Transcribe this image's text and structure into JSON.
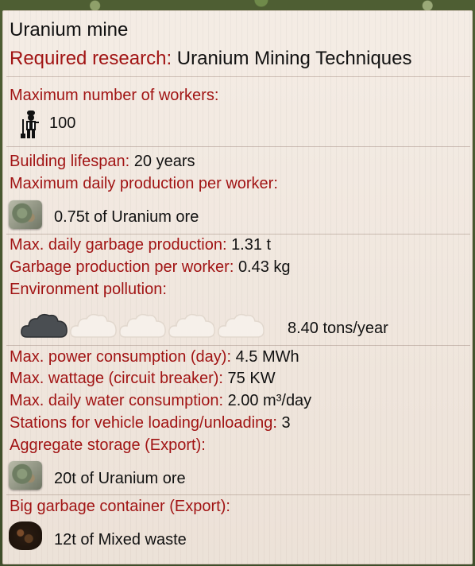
{
  "building": {
    "name": "Uranium mine",
    "required_research_label": "Required research:",
    "required_research_value": "Uranium Mining Techniques"
  },
  "workers": {
    "label": "Maximum number of workers:",
    "icon": "worker-icon",
    "value": "100"
  },
  "lifespan": {
    "label": "Building lifespan:",
    "value": "20 years"
  },
  "production": {
    "label": "Maximum daily production per worker:",
    "icon": "uranium-ore-icon",
    "value": "0.75t of Uranium ore"
  },
  "garbage": {
    "max_label": "Max. daily garbage production:",
    "max_value": "1.31 t",
    "per_worker_label": "Garbage production per worker:",
    "per_worker_value": "0.43 kg"
  },
  "pollution": {
    "label": "Environment pollution:",
    "level": 1,
    "max_level": 5,
    "value": "8.40 tons/year"
  },
  "power": {
    "consumption_label": "Max. power consumption (day):",
    "consumption_value": "4.5 MWh",
    "wattage_label": "Max. wattage (circuit breaker):",
    "wattage_value": "75 KW"
  },
  "water": {
    "label": "Max. daily water consumption:",
    "value": "2.00 m³/day"
  },
  "stations": {
    "label": "Stations for vehicle loading/unloading:",
    "value": "3"
  },
  "storage": {
    "label": "Aggregate storage (Export):",
    "icon": "uranium-ore-icon",
    "value": "20t of Uranium ore"
  },
  "garbage_container": {
    "label": "Big garbage container (Export):",
    "icon": "mixed-waste-icon",
    "value": "12t of Mixed waste"
  },
  "colors": {
    "label": "#a11414",
    "text": "#111111",
    "panel": "#f1e6dc"
  }
}
